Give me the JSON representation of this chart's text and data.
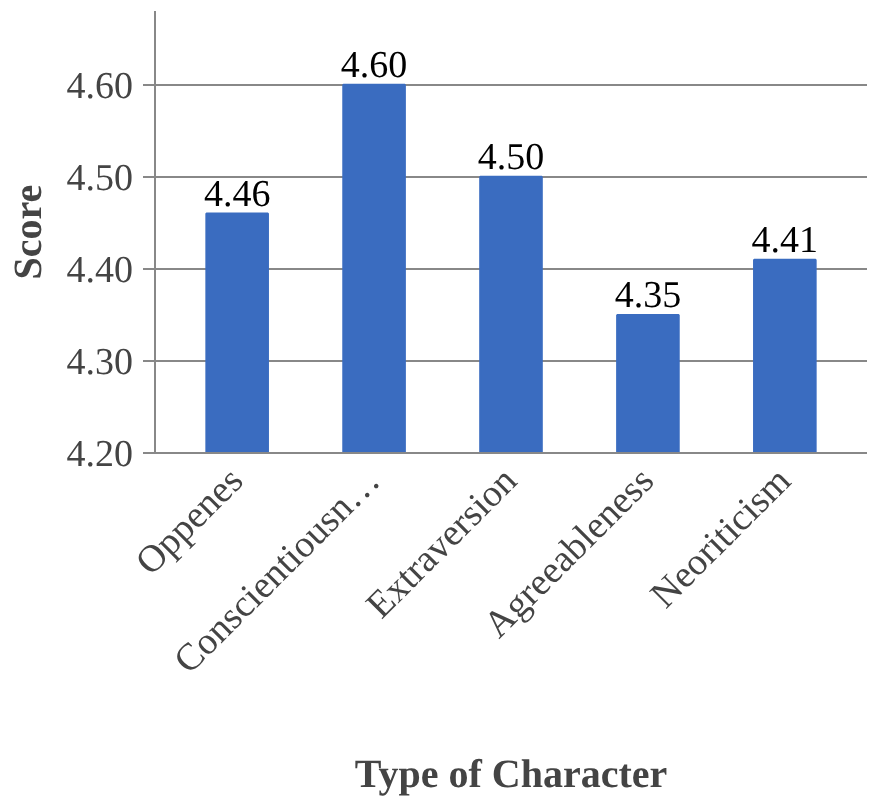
{
  "chart_data": {
    "type": "bar",
    "xlabel": "Type of Character",
    "ylabel": "Score",
    "categories": [
      "Oppenes",
      "Conscientiousn…",
      "Extraversion",
      "Agreeableness",
      "Neoriticism"
    ],
    "values": [
      4.46,
      4.6,
      4.5,
      4.35,
      4.41
    ],
    "color": "#3a6cc0",
    "ylim": [
      4.2,
      4.68
    ],
    "yticks": [
      {
        "value": 4.2,
        "label": "4.20"
      },
      {
        "value": 4.3,
        "label": "4.30"
      },
      {
        "value": 4.4,
        "label": "4.40"
      },
      {
        "value": 4.5,
        "label": "4.50"
      },
      {
        "value": 4.6,
        "label": "4.60"
      }
    ],
    "grid": "y",
    "value_labels": [
      "4.46",
      "4.60",
      "4.50",
      "4.35",
      "4.41"
    ]
  }
}
